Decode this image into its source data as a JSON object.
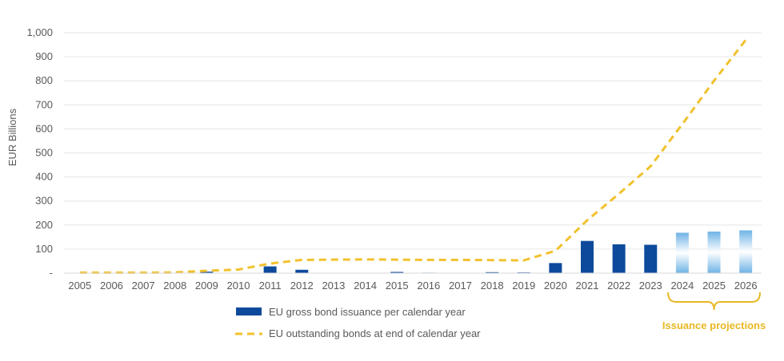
{
  "chart_data": {
    "type": "bar",
    "ylabel": "EUR Billions",
    "ylim": [
      0,
      1000
    ],
    "ytick_labels": [
      "-",
      "100",
      "200",
      "300",
      "400",
      "500",
      "600",
      "700",
      "800",
      "900",
      "1,000"
    ],
    "categories": [
      "2005",
      "2006",
      "2007",
      "2008",
      "2009",
      "2010",
      "2011",
      "2012",
      "2013",
      "2014",
      "2015",
      "2016",
      "2017",
      "2018",
      "2019",
      "2020",
      "2021",
      "2022",
      "2023",
      "2024",
      "2025",
      "2026"
    ],
    "series": [
      {
        "name": "EU gross bond issuance per calendar year",
        "type": "bar",
        "values": [
          0,
          0,
          0,
          0,
          6,
          0,
          28,
          14,
          0,
          0,
          5,
          2,
          0,
          4,
          3,
          42,
          134,
          120,
          118,
          168,
          173,
          178
        ],
        "projected_from": "2024"
      },
      {
        "name": "EU outstanding bonds at end of calendar year",
        "type": "line",
        "style": "dashed",
        "values": [
          2,
          2,
          2,
          3,
          10,
          15,
          40,
          55,
          56,
          57,
          56,
          55,
          55,
          54,
          53,
          93,
          220,
          330,
          445,
          620,
          800,
          970
        ]
      }
    ],
    "annotation": {
      "text": "Issuance projections",
      "spans": [
        "2024",
        "2026"
      ]
    },
    "grid": true,
    "legend_position": "bottom"
  },
  "colors": {
    "bar": "#0d4a9c",
    "bar_projection_top": "#6fb3e6",
    "bar_projection_mid": "#ffffff",
    "line": "#f2c12e",
    "projection": "#e8b823",
    "grid": "#e6e6e6",
    "axis": "#d9d9d9",
    "text": "#595959"
  }
}
